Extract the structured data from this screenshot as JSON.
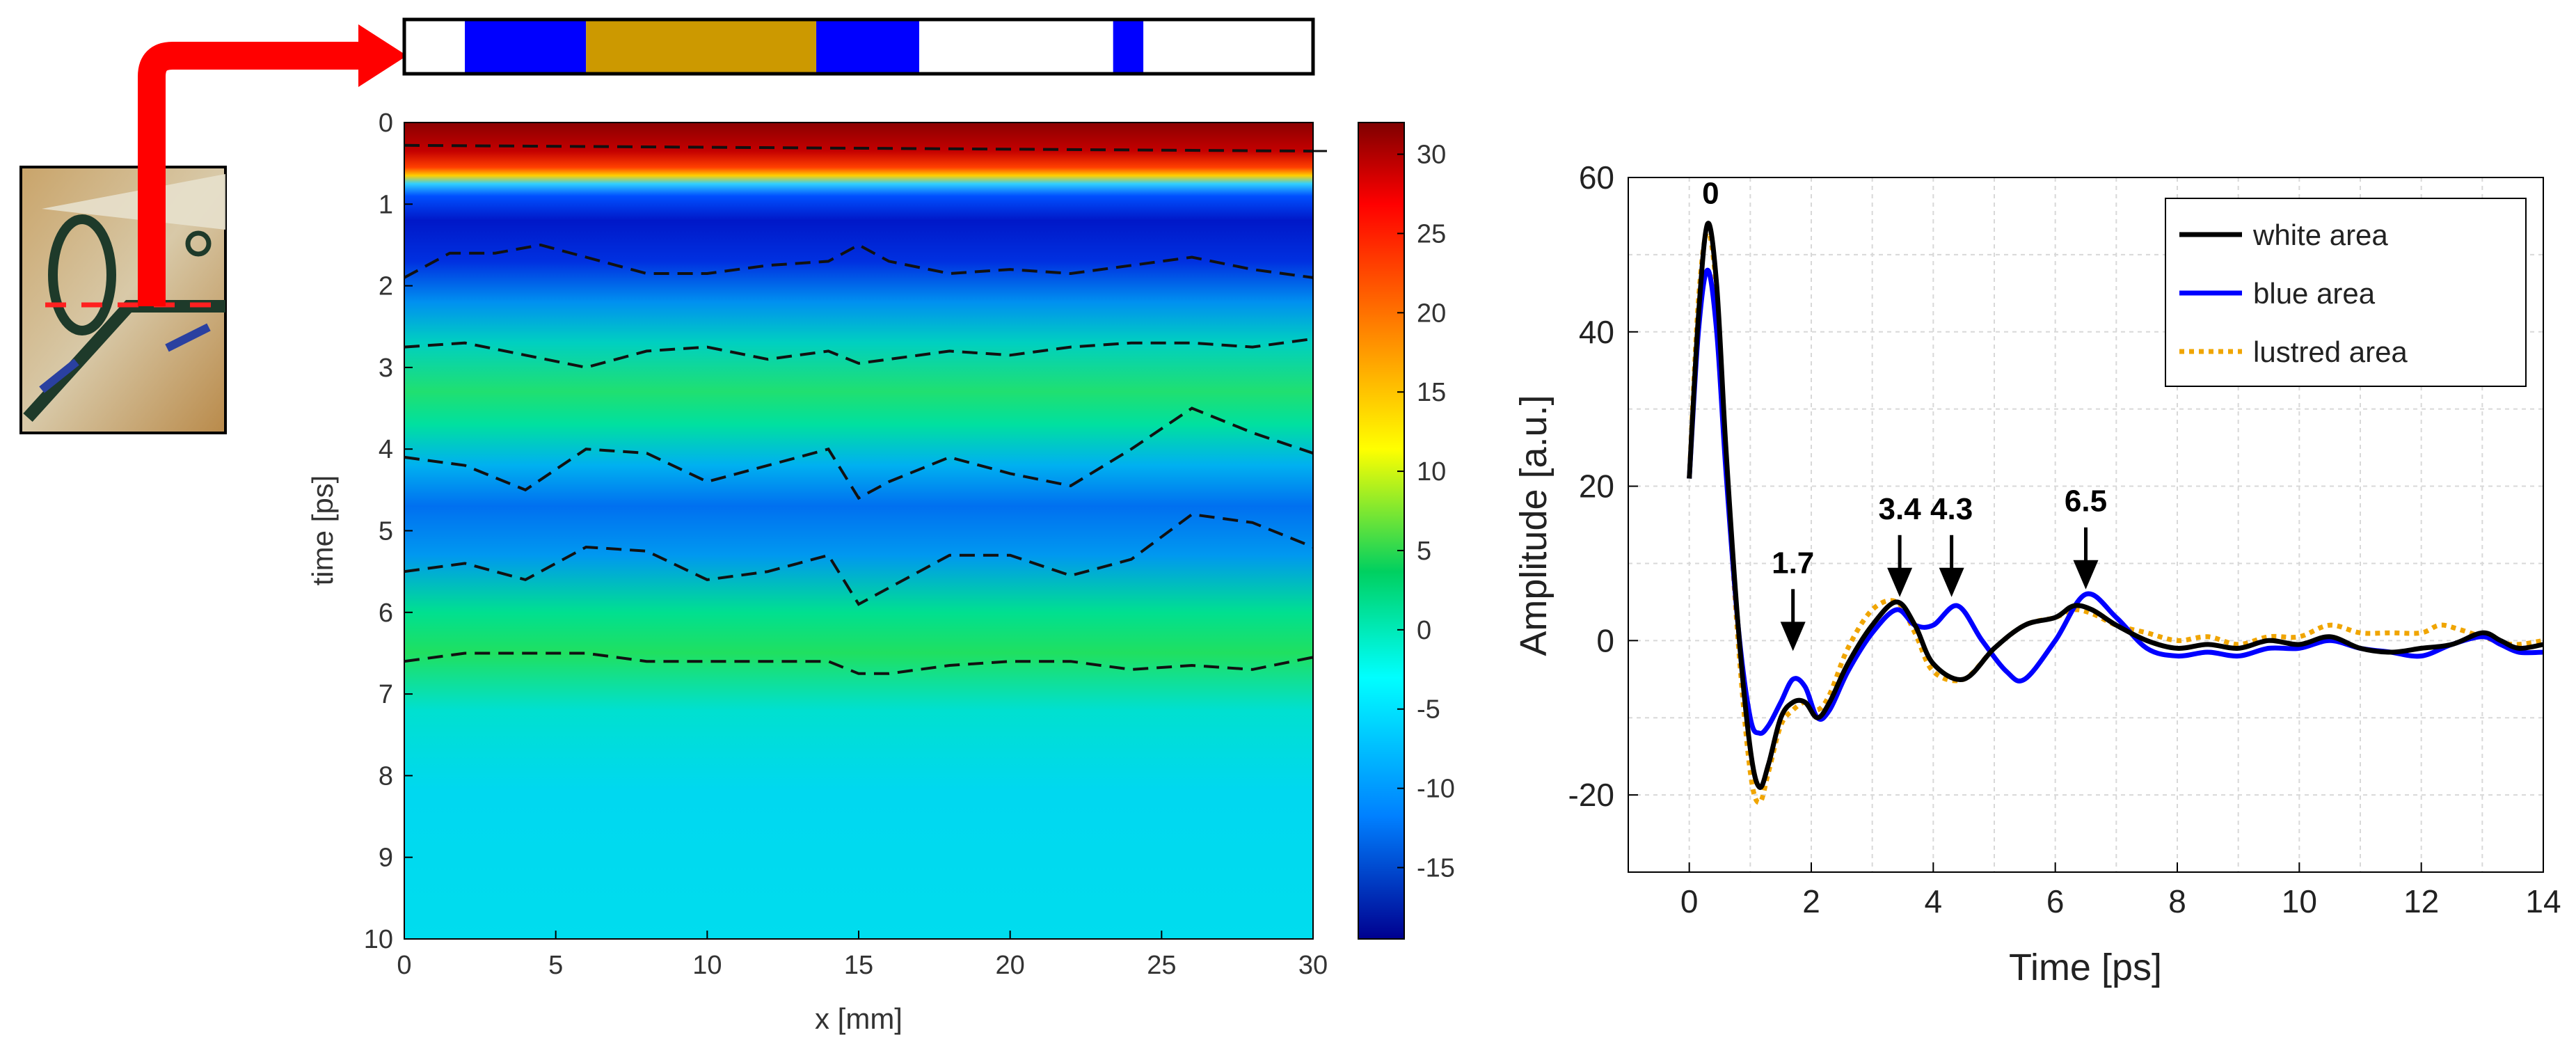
{
  "left_panel": {
    "type": "heatmap",
    "xlabel": "x [mm]",
    "ylabel": "time [ps]",
    "xlim": [
      0,
      30
    ],
    "ylim": [
      0,
      10
    ],
    "x_ticks": [
      "0",
      "5",
      "10",
      "15",
      "20",
      "25",
      "30"
    ],
    "y_ticks": [
      "0",
      "1",
      "2",
      "3",
      "4",
      "5",
      "6",
      "7",
      "8",
      "9",
      "10"
    ],
    "colorbar": {
      "range": [
        -19.5,
        32
      ],
      "ticks": [
        "30",
        "25",
        "20",
        "15",
        "10",
        "5",
        "0",
        "-5",
        "-10",
        "-15"
      ]
    },
    "color_strip": [
      {
        "from_mm": 0,
        "to_mm": 2,
        "color": "#ffffff"
      },
      {
        "from_mm": 2,
        "to_mm": 6,
        "color": "#0000ff"
      },
      {
        "from_mm": 6,
        "to_mm": 13.6,
        "color": "#cc9900"
      },
      {
        "from_mm": 13.6,
        "to_mm": 17,
        "color": "#0000ff"
      },
      {
        "from_mm": 17,
        "to_mm": 23.4,
        "color": "#ffffff"
      },
      {
        "from_mm": 23.4,
        "to_mm": 24.4,
        "color": "#0000ff"
      },
      {
        "from_mm": 24.4,
        "to_mm": 30,
        "color": "#ffffff"
      }
    ],
    "layer_boundaries_ps": [
      {
        "name": "surface",
        "x": [
          0,
          30
        ],
        "y": [
          0.28,
          0.35
        ]
      },
      {
        "name": "interface-1",
        "x": [
          0,
          1.5,
          3,
          4.5,
          6,
          8,
          10,
          12,
          14,
          15,
          16,
          18,
          20,
          22,
          24,
          26,
          28,
          30
        ],
        "y": [
          1.9,
          1.6,
          1.6,
          1.5,
          1.65,
          1.85,
          1.85,
          1.75,
          1.7,
          1.5,
          1.7,
          1.85,
          1.8,
          1.85,
          1.75,
          1.65,
          1.8,
          1.9
        ]
      },
      {
        "name": "interface-2",
        "x": [
          0,
          2,
          4,
          6,
          8,
          10,
          12,
          14,
          15,
          16,
          18,
          20,
          22,
          24,
          26,
          28,
          30
        ],
        "y": [
          2.75,
          2.7,
          2.85,
          3.0,
          2.8,
          2.75,
          2.9,
          2.8,
          2.95,
          2.9,
          2.8,
          2.85,
          2.75,
          2.7,
          2.7,
          2.75,
          2.65
        ]
      },
      {
        "name": "interface-3",
        "x": [
          0,
          2,
          4,
          6,
          8,
          10,
          12,
          14,
          15,
          16,
          18,
          20,
          22,
          24,
          26,
          28,
          30
        ],
        "y": [
          4.1,
          4.2,
          4.5,
          4.0,
          4.05,
          4.4,
          4.2,
          4.0,
          4.6,
          4.4,
          4.1,
          4.3,
          4.45,
          4.0,
          3.5,
          3.8,
          4.05
        ]
      },
      {
        "name": "interface-4",
        "x": [
          0,
          2,
          4,
          6,
          8,
          10,
          12,
          14,
          15,
          16,
          18,
          20,
          22,
          24,
          26,
          28,
          30
        ],
        "y": [
          5.5,
          5.4,
          5.6,
          5.2,
          5.25,
          5.6,
          5.5,
          5.3,
          5.9,
          5.7,
          5.3,
          5.3,
          5.55,
          5.35,
          4.8,
          4.9,
          5.2
        ]
      },
      {
        "name": "interface-5",
        "x": [
          0,
          2,
          4,
          6,
          8,
          10,
          12,
          14,
          15,
          16,
          18,
          20,
          22,
          24,
          26,
          28,
          30
        ],
        "y": [
          6.6,
          6.5,
          6.5,
          6.5,
          6.6,
          6.6,
          6.6,
          6.6,
          6.75,
          6.75,
          6.65,
          6.6,
          6.6,
          6.7,
          6.65,
          6.7,
          6.55
        ]
      }
    ]
  },
  "chart_data": {
    "type": "line",
    "title": "",
    "xlabel": "Time [ps]",
    "ylabel": "Amplitude [a.u.]",
    "xlim": [
      -1,
      14
    ],
    "ylim": [
      -30,
      60
    ],
    "grid": true,
    "legend_position": "top-right",
    "x_ticks": [
      "0",
      "2",
      "4",
      "6",
      "8",
      "10",
      "12",
      "14"
    ],
    "y_ticks": [
      "60",
      "40",
      "20",
      "0",
      "-20"
    ],
    "series": [
      {
        "name": "white area",
        "color": "#000000",
        "style": "solid",
        "x": [
          0,
          0.15,
          0.3,
          0.45,
          0.6,
          0.8,
          1.0,
          1.15,
          1.3,
          1.5,
          1.7,
          1.9,
          2.1,
          2.3,
          2.6,
          3.0,
          3.4,
          3.7,
          4.0,
          4.5,
          5.0,
          5.5,
          6.0,
          6.3,
          6.6,
          7.0,
          7.5,
          8.0,
          8.5,
          9.0,
          9.5,
          10.0,
          10.5,
          11.0,
          11.5,
          12.0,
          12.5,
          13.0,
          13.3,
          13.6,
          14.0
        ],
        "y": [
          21,
          42,
          54,
          46,
          25,
          2,
          -14,
          -19,
          -16,
          -10,
          -8,
          -8,
          -10,
          -8,
          -3,
          2,
          5,
          2,
          -3,
          -5,
          -1,
          2,
          3,
          4.5,
          4,
          2,
          0,
          -1,
          -0.5,
          -1,
          0,
          -0.5,
          0.5,
          -1,
          -1.5,
          -1,
          -0.5,
          1,
          0,
          -1,
          -0.5
        ]
      },
      {
        "name": "blue area",
        "color": "#0000ff",
        "style": "solid",
        "x": [
          0,
          0.15,
          0.3,
          0.45,
          0.6,
          0.8,
          1.0,
          1.15,
          1.3,
          1.5,
          1.7,
          1.9,
          2.1,
          2.3,
          2.6,
          3.0,
          3.4,
          3.7,
          4.0,
          4.4,
          4.8,
          5.2,
          5.5,
          6.0,
          6.5,
          7.0,
          7.5,
          8.0,
          8.5,
          9.0,
          9.5,
          10.0,
          10.5,
          11.0,
          11.5,
          12.0,
          12.5,
          13.0,
          13.3,
          13.6,
          14.0
        ],
        "y": [
          21,
          40,
          48,
          40,
          22,
          2,
          -10,
          -12,
          -11,
          -8,
          -5,
          -6,
          -10,
          -9,
          -4,
          1,
          4,
          2,
          2,
          4.5,
          0,
          -4,
          -5,
          0,
          6,
          3,
          -1,
          -2,
          -1.5,
          -2,
          -1,
          -1,
          0,
          -1,
          -1.5,
          -2,
          -0.5,
          0.5,
          -0.5,
          -1.5,
          -1.5
        ]
      },
      {
        "name": "lustred area",
        "color": "#f0a500",
        "style": "dotted",
        "x": [
          0,
          0.15,
          0.3,
          0.45,
          0.6,
          0.8,
          1.0,
          1.15,
          1.3,
          1.5,
          1.7,
          1.9,
          2.1,
          2.3,
          2.6,
          3.0,
          3.4,
          3.7,
          4.0,
          4.5,
          5.0,
          5.5,
          6.0,
          6.3,
          6.6,
          7.0,
          7.5,
          8.0,
          8.5,
          9.0,
          9.5,
          10.0,
          10.5,
          11.0,
          11.5,
          12.0,
          12.3,
          12.6,
          13.0,
          13.5,
          14.0
        ],
        "y": [
          21,
          44,
          53,
          45,
          24,
          0,
          -17,
          -21,
          -17,
          -11,
          -9,
          -8,
          -9,
          -7,
          -1,
          4,
          5,
          1,
          -4,
          -5,
          -1,
          2,
          3,
          4,
          3.5,
          2,
          1,
          0,
          0.5,
          -0.5,
          0.5,
          0.5,
          2,
          1,
          1,
          1,
          2,
          1.5,
          0.5,
          -0.5,
          0
        ]
      }
    ],
    "annotations": [
      {
        "label": "0",
        "x": 0.35,
        "y": 55,
        "arrow": false
      },
      {
        "label": "1.7",
        "x": 1.7,
        "y": -1,
        "arrow": true
      },
      {
        "label": "3.4",
        "x": 3.45,
        "y": 6,
        "arrow": true
      },
      {
        "label": "4.3",
        "x": 4.3,
        "y": 6,
        "arrow": true
      },
      {
        "label": "6.5",
        "x": 6.5,
        "y": 7,
        "arrow": true
      }
    ]
  }
}
